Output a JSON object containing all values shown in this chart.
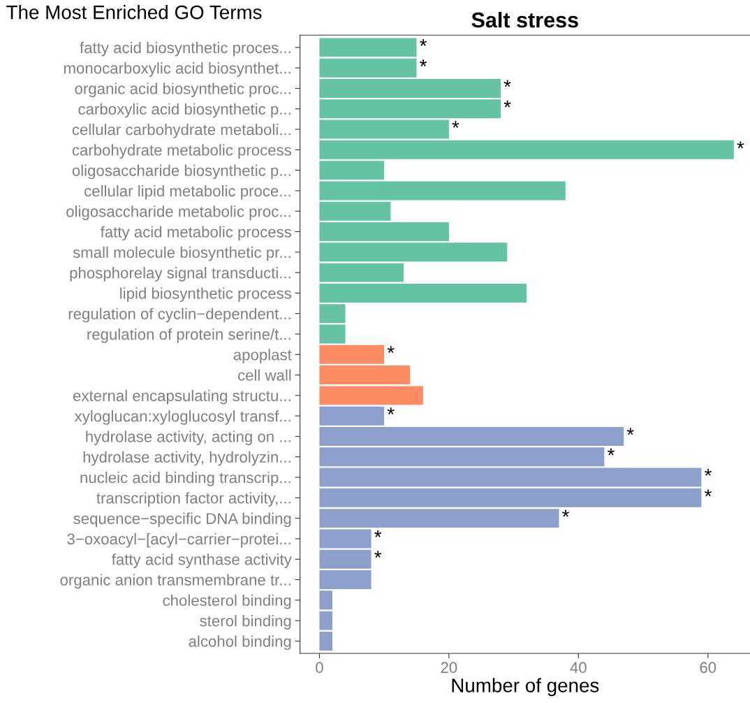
{
  "chart_data": {
    "type": "bar",
    "orientation": "horizontal",
    "title": "Salt stress",
    "xlabel": "Number of genes",
    "annotations": [
      "The Most Enriched GO Terms"
    ],
    "categories": [
      "fatty acid biosynthetic proces...",
      "monocarboxylic acid biosynthet...",
      "organic acid biosynthetic proc...",
      "carboxylic acid biosynthetic p...",
      "cellular carbohydrate metaboli...",
      "carbohydrate metabolic process",
      "oligosaccharide biosynthetic p...",
      "cellular lipid metabolic proce...",
      "oligosaccharide metabolic proc...",
      "fatty acid metabolic process",
      "small molecule biosynthetic pr...",
      "phosphorelay signal transducti...",
      "lipid biosynthetic process",
      "regulation of cyclin−dependent...",
      "regulation of protein serine/t...",
      "apoplast",
      "cell wall",
      "external encapsulating structu...",
      "xyloglucan:xyloglucosyl transf...",
      "hydrolase activity, acting on ...",
      "hydrolase activity, hydrolyzin...",
      "nucleic acid binding transcrip...",
      "transcription factor activity,...",
      "sequence−specific DNA binding",
      "3−oxoacyl−[acyl−carrier−protei...",
      "fatty acid synthase activity",
      "organic anion transmembrane tr...",
      "cholesterol binding",
      "sterol binding",
      "alcohol binding"
    ],
    "values": [
      15,
      15,
      28,
      28,
      20,
      64,
      10,
      38,
      11,
      20,
      29,
      13,
      32,
      4,
      4,
      10,
      14,
      16,
      10,
      47,
      44,
      59,
      59,
      37,
      8,
      8,
      8,
      2,
      2,
      2
    ],
    "value_labels": [
      "*",
      "*",
      "*",
      "*",
      "*",
      "*",
      null,
      null,
      null,
      null,
      null,
      null,
      null,
      null,
      null,
      "*",
      null,
      null,
      "*",
      "*",
      "*",
      "*",
      "*",
      "*",
      "*",
      "*",
      null,
      null,
      null,
      null
    ],
    "colors": [
      "#66c2a5",
      "#66c2a5",
      "#66c2a5",
      "#66c2a5",
      "#66c2a5",
      "#66c2a5",
      "#66c2a5",
      "#66c2a5",
      "#66c2a5",
      "#66c2a5",
      "#66c2a5",
      "#66c2a5",
      "#66c2a5",
      "#66c2a5",
      "#66c2a5",
      "#fc8d62",
      "#fc8d62",
      "#fc8d62",
      "#8da0cb",
      "#8da0cb",
      "#8da0cb",
      "#8da0cb",
      "#8da0cb",
      "#8da0cb",
      "#8da0cb",
      "#8da0cb",
      "#8da0cb",
      "#8da0cb",
      "#8da0cb",
      "#8da0cb"
    ],
    "xlim": [
      -3,
      66.5
    ],
    "xticks": [
      0,
      20,
      40,
      60
    ],
    "grid": false,
    "legend": false
  }
}
